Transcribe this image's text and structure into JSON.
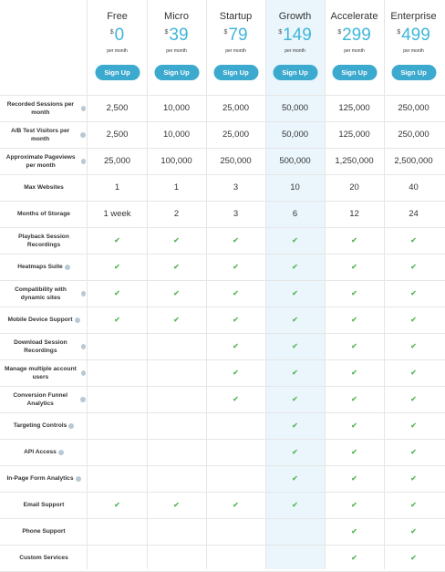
{
  "plans": [
    {
      "name": "Free",
      "currency": "$",
      "price": "0",
      "per": "per month",
      "signup": "Sign Up"
    },
    {
      "name": "Micro",
      "currency": "$",
      "price": "39",
      "per": "per month",
      "signup": "Sign Up"
    },
    {
      "name": "Startup",
      "currency": "$",
      "price": "79",
      "per": "per month",
      "signup": "Sign Up"
    },
    {
      "name": "Growth",
      "currency": "$",
      "price": "149",
      "per": "per month",
      "signup": "Sign Up"
    },
    {
      "name": "Accelerate",
      "currency": "$",
      "price": "299",
      "per": "per month",
      "signup": "Sign Up"
    },
    {
      "name": "Enterprise",
      "currency": "$",
      "price": "499",
      "per": "per month",
      "signup": "Sign Up"
    }
  ],
  "rows": [
    {
      "label": "Recorded Sessions per month",
      "info": true,
      "values": [
        "2,500",
        "10,000",
        "25,000",
        "50,000",
        "125,000",
        "250,000"
      ]
    },
    {
      "label": "A/B Test Visitors per month",
      "info": true,
      "values": [
        "2,500",
        "10,000",
        "25,000",
        "50,000",
        "125,000",
        "250,000"
      ]
    },
    {
      "label": "Approximate Pageviews per month",
      "info": true,
      "values": [
        "25,000",
        "100,000",
        "250,000",
        "500,000",
        "1,250,000",
        "2,500,000"
      ]
    },
    {
      "label": "Max Websites",
      "info": false,
      "values": [
        "1",
        "1",
        "3",
        "10",
        "20",
        "40"
      ]
    },
    {
      "label": "Months of Storage",
      "info": false,
      "values": [
        "1 week",
        "2",
        "3",
        "6",
        "12",
        "24"
      ]
    },
    {
      "label": "Playback Session Recordings",
      "info": false,
      "checks": [
        true,
        true,
        true,
        true,
        true,
        true
      ]
    },
    {
      "label": "Heatmaps Suite",
      "info": true,
      "checks": [
        true,
        true,
        true,
        true,
        true,
        true
      ]
    },
    {
      "label": "Compatibility with dynamic sites",
      "info": true,
      "checks": [
        true,
        true,
        true,
        true,
        true,
        true
      ]
    },
    {
      "label": "Mobile Device Support",
      "info": true,
      "checks": [
        true,
        true,
        true,
        true,
        true,
        true
      ]
    },
    {
      "label": "Download Session Recordings",
      "info": true,
      "checks": [
        false,
        false,
        true,
        true,
        true,
        true
      ]
    },
    {
      "label": "Manage multiple account users",
      "info": true,
      "checks": [
        false,
        false,
        true,
        true,
        true,
        true
      ]
    },
    {
      "label": "Conversion Funnel Analytics",
      "info": true,
      "checks": [
        false,
        false,
        true,
        true,
        true,
        true
      ]
    },
    {
      "label": "Targeting Controls",
      "info": true,
      "checks": [
        false,
        false,
        false,
        true,
        true,
        true
      ]
    },
    {
      "label": "API Access",
      "info": true,
      "checks": [
        false,
        false,
        false,
        true,
        true,
        true
      ]
    },
    {
      "label": "In-Page Form Analytics",
      "info": true,
      "checks": [
        false,
        false,
        false,
        true,
        true,
        true
      ]
    },
    {
      "label": "Email Support",
      "info": false,
      "checks": [
        true,
        true,
        true,
        true,
        true,
        true
      ]
    },
    {
      "label": "Phone Support",
      "info": false,
      "checks": [
        false,
        false,
        false,
        false,
        true,
        true
      ]
    },
    {
      "label": "Custom Services",
      "info": false,
      "checks": [
        false,
        false,
        false,
        false,
        true,
        true
      ]
    }
  ],
  "check_glyph": "✔",
  "colors": {
    "accent": "#3fb6d9",
    "button": "#3ca9cf",
    "check": "#5cb85c",
    "highlight": "#eaf6fc"
  }
}
